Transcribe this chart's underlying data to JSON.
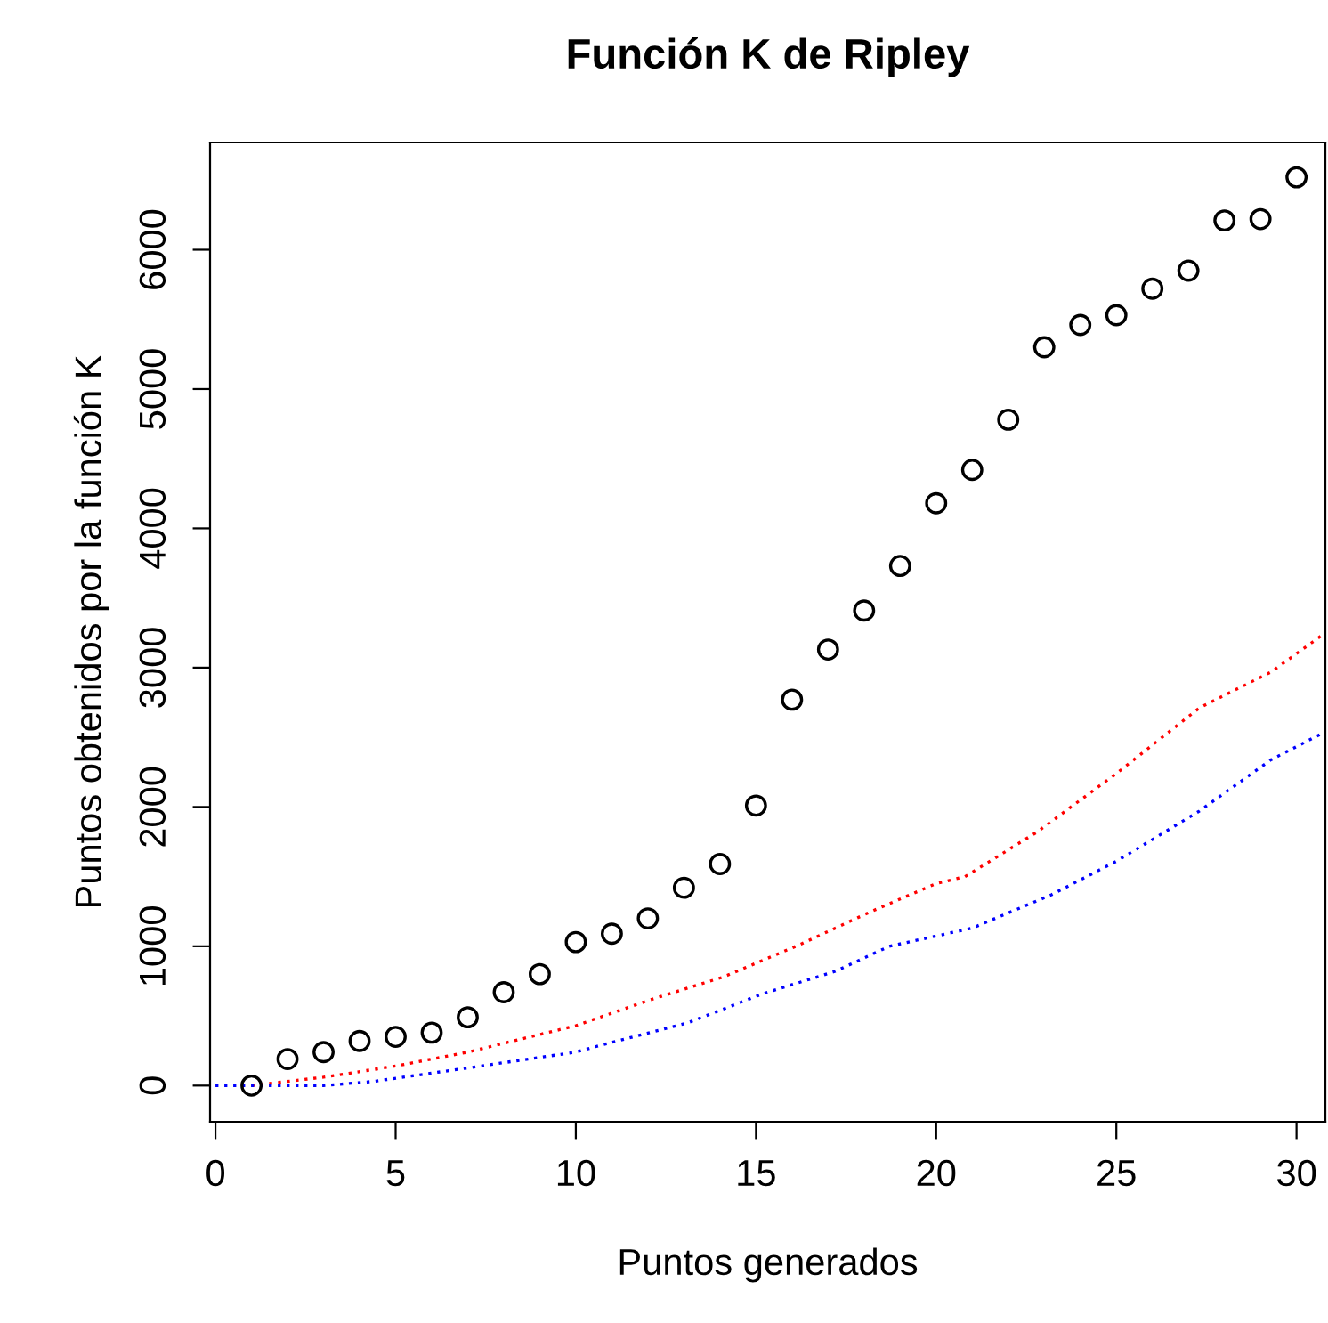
{
  "chart_data": {
    "type": "scatter",
    "title": "Función K de Ripley",
    "xlabel": "Puntos generados",
    "ylabel": "Puntos obtenidos por la función K",
    "xlim": [
      -0.15,
      30.8
    ],
    "ylim": [
      -260,
      6770
    ],
    "xticks": [
      0,
      5,
      10,
      15,
      20,
      25,
      30
    ],
    "yticks": [
      0,
      1000,
      2000,
      3000,
      4000,
      5000,
      6000
    ],
    "grid": false,
    "legend": false,
    "series": [
      {
        "color": "#000000",
        "marker": "circle",
        "x": [
          1,
          2,
          3,
          4,
          5,
          6,
          7,
          8,
          9,
          10,
          11,
          12,
          13,
          14,
          15,
          16,
          17,
          18,
          19,
          20,
          21,
          22,
          23,
          24,
          25,
          26,
          27,
          28,
          29,
          30
        ],
        "values": [
          0,
          190,
          240,
          320,
          350,
          380,
          490,
          670,
          800,
          1030,
          1090,
          1200,
          1420,
          1590,
          2010,
          2770,
          3130,
          3410,
          3730,
          4180,
          4420,
          4780,
          5300,
          5460,
          5530,
          5720,
          5850,
          6210,
          6220,
          6520
        ]
      },
      {
        "type": "line",
        "color": "#ff0000",
        "line_style": "dotted",
        "x": [
          1,
          3,
          5,
          7,
          10,
          12,
          14.1,
          16.2,
          18.2,
          20,
          20.8,
          22.8,
          25,
          27.3,
          29.3,
          30.8
        ],
        "values": [
          0,
          60,
          140,
          240,
          430,
          610,
          780,
          1010,
          1250,
          1450,
          1500,
          1820,
          2240,
          2710,
          2970,
          3250
        ]
      },
      {
        "type": "line",
        "color": "#0000ff",
        "line_style": "dotted",
        "x": [
          0,
          3,
          4.4,
          7.1,
          10,
          10.7,
          13.1,
          15.2,
          17.2,
          18.7,
          21,
          23.2,
          25,
          27.3,
          29.3,
          30.8
        ],
        "values": [
          0,
          0,
          30,
          130,
          240,
          290,
          450,
          660,
          820,
          1000,
          1130,
          1370,
          1610,
          1970,
          2340,
          2540
        ]
      }
    ]
  }
}
